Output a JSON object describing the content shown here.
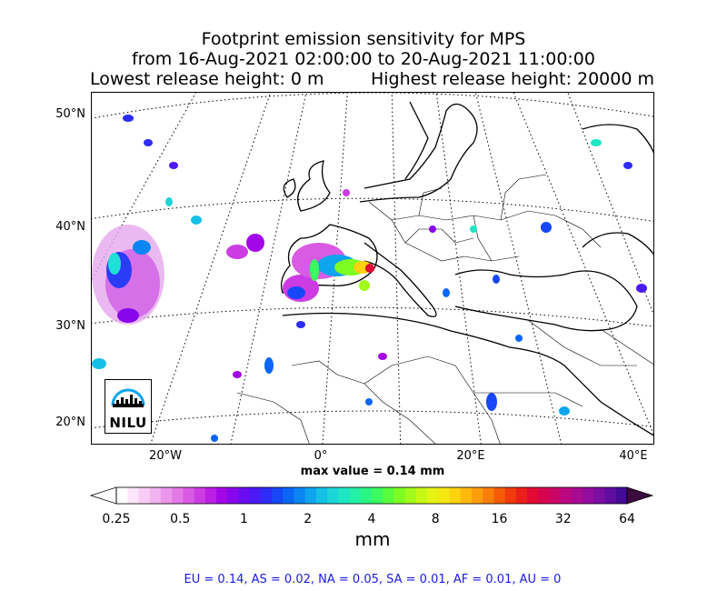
{
  "title": {
    "line1": "Footprint emission sensitivity for MPS",
    "line2": "from 16-Aug-2021 02:00:00 to 20-Aug-2021 11:00:00",
    "lowest": "Lowest release height: 0 m",
    "highest": "Highest release height: 20000 m"
  },
  "map": {
    "lat_labels": [
      "50°N",
      "40°N",
      "30°N",
      "20°N"
    ],
    "lon_labels": [
      "20°W",
      "0°",
      "20°E",
      "40°E"
    ],
    "max_value": "max value = 0.14 mm",
    "logo_text": "NILU"
  },
  "colorbar": {
    "tick_labels": [
      "0.25",
      "0.5",
      "1",
      "2",
      "4",
      "8",
      "16",
      "32",
      "64"
    ],
    "unit": "mm",
    "colors": [
      "#ffffff",
      "#fde6fb",
      "#f8cdf5",
      "#f2b3ef",
      "#eb96ea",
      "#e379e6",
      "#d95ae3",
      "#cc3ce2",
      "#bb1fe3",
      "#a307e7",
      "#8706ec",
      "#6a0cf1",
      "#4b18f6",
      "#2d2cf8",
      "#1747f9",
      "#0b66f8",
      "#0a86f4",
      "#0ea4ee",
      "#14c0e6",
      "#1ad6d9",
      "#1ee6c4",
      "#23efa6",
      "#2af685",
      "#3cfb60",
      "#58fd3c",
      "#7cfd24",
      "#a2fb1a",
      "#c6f816",
      "#e4f214",
      "#f6e612",
      "#fdd20f",
      "#fdb90c",
      "#fc9e0a",
      "#fa7f08",
      "#f65c08",
      "#f13b0c",
      "#ea1e1a",
      "#e20a33",
      "#d7054e",
      "#ca0568",
      "#bb0780",
      "#a90a92",
      "#930c9e",
      "#7a0da2",
      "#5f0c9f",
      "#430a96"
    ],
    "under_color": "#ffffff",
    "over_color": "#3b0a3f"
  },
  "footer": {
    "region_stats": "EU = 0.14,  AS = 0.02,  NA = 0.05,  SA = 0.01,  AF = 0.01,  AU = 0"
  }
}
